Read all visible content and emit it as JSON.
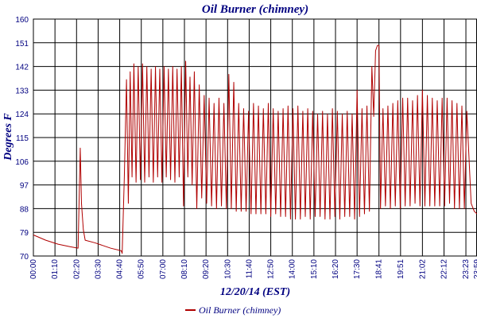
{
  "chart_data": {
    "type": "line",
    "title": "Oil Burner (chimney)",
    "xlabel": "12/20/14 (EST)",
    "ylabel": "Degrees F",
    "ylim": [
      70,
      160
    ],
    "yticks": [
      70,
      79,
      88,
      97,
      106,
      115,
      124,
      133,
      142,
      151,
      160
    ],
    "xticks": [
      "00:00",
      "01:10",
      "02:20",
      "03:30",
      "04:40",
      "05:50",
      "07:00",
      "08:10",
      "09:20",
      "10:30",
      "11:40",
      "12:50",
      "14:00",
      "15:10",
      "16:20",
      "17:30",
      "18:41",
      "19:51",
      "21:02",
      "22:12",
      "23:23",
      "23:59"
    ],
    "grid": true,
    "legend": "bottom",
    "series": [
      {
        "name": "Oil Burner (chimney)",
        "color": "#b00000",
        "points": [
          [
            "00:00",
            78
          ],
          [
            "00:40",
            76
          ],
          [
            "01:20",
            74.5
          ],
          [
            "02:00",
            73.5
          ],
          [
            "02:25",
            73
          ],
          [
            "02:32",
            111
          ],
          [
            "02:36",
            90
          ],
          [
            "02:42",
            80
          ],
          [
            "02:48",
            76
          ],
          [
            "03:20",
            75
          ],
          [
            "04:10",
            73
          ],
          [
            "04:45",
            72
          ],
          [
            "04:48",
            71
          ],
          [
            "04:55",
            100
          ],
          [
            "05:02",
            137
          ],
          [
            "05:08",
            90
          ],
          [
            "05:14",
            140
          ],
          [
            "05:20",
            100
          ],
          [
            "05:26",
            143
          ],
          [
            "05:33",
            98
          ],
          [
            "05:40",
            142
          ],
          [
            "05:47",
            99
          ],
          [
            "05:54",
            143
          ],
          [
            "06:01",
            98
          ],
          [
            "06:08",
            142
          ],
          [
            "06:15",
            100
          ],
          [
            "06:22",
            141
          ],
          [
            "06:29",
            98
          ],
          [
            "06:36",
            142
          ],
          [
            "06:43",
            100
          ],
          [
            "06:50",
            141
          ],
          [
            "06:57",
            98
          ],
          [
            "07:04",
            142
          ],
          [
            "07:11",
            100
          ],
          [
            "07:18",
            141
          ],
          [
            "07:25",
            99
          ],
          [
            "07:32",
            142
          ],
          [
            "07:39",
            98
          ],
          [
            "07:46",
            141
          ],
          [
            "07:53",
            100
          ],
          [
            "08:00",
            142
          ],
          [
            "08:07",
            89
          ],
          [
            "08:14",
            144
          ],
          [
            "08:21",
            100
          ],
          [
            "08:28",
            138
          ],
          [
            "08:35",
            97
          ],
          [
            "08:42",
            140
          ],
          [
            "08:50",
            88
          ],
          [
            "08:58",
            135
          ],
          [
            "09:06",
            92
          ],
          [
            "09:14",
            131
          ],
          [
            "09:22",
            90
          ],
          [
            "09:30",
            130
          ],
          [
            "09:38",
            89
          ],
          [
            "09:46",
            128
          ],
          [
            "09:54",
            88
          ],
          [
            "10:02",
            130
          ],
          [
            "10:10",
            89
          ],
          [
            "10:18",
            128
          ],
          [
            "10:26",
            88
          ],
          [
            "10:34",
            139
          ],
          [
            "10:42",
            88
          ],
          [
            "10:50",
            136
          ],
          [
            "10:58",
            87
          ],
          [
            "11:06",
            128
          ],
          [
            "11:14",
            87
          ],
          [
            "11:22",
            126
          ],
          [
            "11:30",
            87
          ],
          [
            "11:38",
            125
          ],
          [
            "11:46",
            86
          ],
          [
            "11:54",
            128
          ],
          [
            "12:02",
            86
          ],
          [
            "12:10",
            127
          ],
          [
            "12:18",
            86
          ],
          [
            "12:26",
            126
          ],
          [
            "12:34",
            86
          ],
          [
            "12:42",
            128
          ],
          [
            "12:50",
            85
          ],
          [
            "12:58",
            126
          ],
          [
            "13:06",
            86
          ],
          [
            "13:14",
            125
          ],
          [
            "13:22",
            85
          ],
          [
            "13:30",
            126
          ],
          [
            "13:38",
            85
          ],
          [
            "13:46",
            127
          ],
          [
            "13:54",
            84
          ],
          [
            "14:02",
            126
          ],
          [
            "14:10",
            84
          ],
          [
            "14:18",
            127
          ],
          [
            "14:26",
            84
          ],
          [
            "14:34",
            125
          ],
          [
            "14:42",
            85
          ],
          [
            "14:50",
            126
          ],
          [
            "14:58",
            84
          ],
          [
            "15:06",
            125
          ],
          [
            "15:14",
            85
          ],
          [
            "15:22",
            124
          ],
          [
            "15:30",
            85
          ],
          [
            "15:38",
            125
          ],
          [
            "15:46",
            84
          ],
          [
            "15:54",
            124
          ],
          [
            "16:02",
            84
          ],
          [
            "16:10",
            126
          ],
          [
            "16:18",
            85
          ],
          [
            "16:26",
            125
          ],
          [
            "16:34",
            84
          ],
          [
            "16:42",
            124
          ],
          [
            "16:50",
            85
          ],
          [
            "16:58",
            125
          ],
          [
            "17:06",
            85
          ],
          [
            "17:14",
            124
          ],
          [
            "17:22",
            84
          ],
          [
            "17:30",
            133
          ],
          [
            "17:38",
            85
          ],
          [
            "17:46",
            126
          ],
          [
            "17:54",
            86
          ],
          [
            "18:02",
            127
          ],
          [
            "18:10",
            87
          ],
          [
            "18:18",
            142
          ],
          [
            "18:24",
            123
          ],
          [
            "18:30",
            148
          ],
          [
            "18:36",
            150
          ],
          [
            "18:41",
            150
          ],
          [
            "18:46",
            88
          ],
          [
            "18:54",
            126
          ],
          [
            "19:02",
            89
          ],
          [
            "19:10",
            127
          ],
          [
            "19:18",
            88
          ],
          [
            "19:26",
            128
          ],
          [
            "19:34",
            89
          ],
          [
            "19:42",
            129
          ],
          [
            "19:50",
            88
          ],
          [
            "19:58",
            130
          ],
          [
            "20:06",
            89
          ],
          [
            "20:14",
            130
          ],
          [
            "20:22",
            89
          ],
          [
            "20:30",
            129
          ],
          [
            "20:38",
            90
          ],
          [
            "20:46",
            131
          ],
          [
            "20:54",
            89
          ],
          [
            "21:02",
            133
          ],
          [
            "21:10",
            89
          ],
          [
            "21:18",
            131
          ],
          [
            "21:26",
            89
          ],
          [
            "21:34",
            130
          ],
          [
            "21:42",
            89
          ],
          [
            "21:50",
            129
          ],
          [
            "21:58",
            89
          ],
          [
            "22:06",
            130
          ],
          [
            "22:14",
            89
          ],
          [
            "22:22",
            130
          ],
          [
            "22:30",
            90
          ],
          [
            "22:38",
            129
          ],
          [
            "22:46",
            88
          ],
          [
            "22:54",
            128
          ],
          [
            "23:02",
            88
          ],
          [
            "23:10",
            127
          ],
          [
            "23:18",
            88
          ],
          [
            "23:26",
            125
          ],
          [
            "23:40",
            90
          ],
          [
            "23:50",
            87
          ],
          [
            "23:59",
            86
          ]
        ]
      }
    ]
  }
}
